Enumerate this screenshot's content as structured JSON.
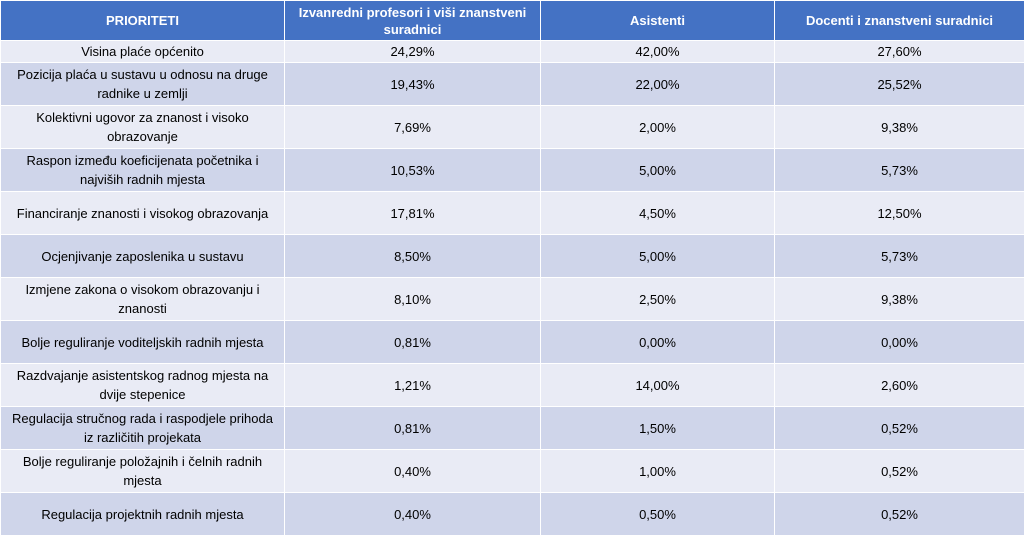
{
  "table": {
    "headers": [
      "PRIORITETI",
      "Izvanredni profesori i viši znanstveni suradnici",
      "Asistenti",
      "Docenti i znanstveni suradnici"
    ],
    "rows": [
      [
        "Visina plaće općenito",
        "24,29%",
        "42,00%",
        "27,60%"
      ],
      [
        "Pozicija plaća u sustavu u odnosu na druge radnike u zemlji",
        "19,43%",
        "22,00%",
        "25,52%"
      ],
      [
        "Kolektivni ugovor za znanost i visoko obrazovanje",
        "7,69%",
        "2,00%",
        "9,38%"
      ],
      [
        "Raspon između koeficijenata početnika i najviših radnih mjesta",
        "10,53%",
        "5,00%",
        "5,73%"
      ],
      [
        "Financiranje znanosti i visokog obrazovanja",
        "17,81%",
        "4,50%",
        "12,50%"
      ],
      [
        "Ocjenjivanje zaposlenika u sustavu",
        "8,50%",
        "5,00%",
        "5,73%"
      ],
      [
        "Izmjene zakona o visokom obrazovanju i znanosti",
        "8,10%",
        "2,50%",
        "9,38%"
      ],
      [
        "Bolje reguliranje voditeljskih radnih mjesta",
        "0,81%",
        "0,00%",
        "0,00%"
      ],
      [
        "Razdvajanje asistentskog radnog mjesta na dvije stepenice",
        "1,21%",
        "14,00%",
        "2,60%"
      ],
      [
        "Regulacija stručnog rada i raspodjele prihoda iz različitih projekata",
        "0,81%",
        "1,50%",
        "0,52%"
      ],
      [
        "Bolje reguliranje položajnih i čelnih radnih mjesta",
        "0,40%",
        "1,00%",
        "0,52%"
      ],
      [
        "Regulacija projektnih radnih mjesta",
        "0,40%",
        "0,50%",
        "0,52%"
      ]
    ]
  },
  "colors": {
    "header_bg": "#4472c4",
    "header_text": "#ffffff",
    "row_light": "#e9ebf5",
    "row_dark": "#cfd5ea"
  }
}
